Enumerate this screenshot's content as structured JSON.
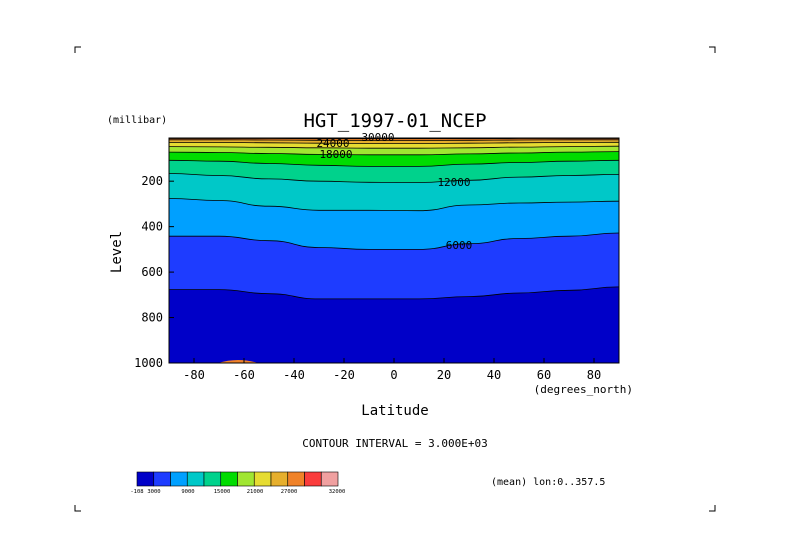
{
  "chart_data": {
    "type": "heatmap",
    "subtype": "filled-contour (latitude-pressure section)",
    "title": "HGT_1997-01_NCEP",
    "xlabel": "Latitude",
    "xunits": "(degrees_north)",
    "ylabel": "Level",
    "yunits": "(millibar)",
    "x_ticks": [
      -80,
      -60,
      -40,
      -20,
      0,
      20,
      40,
      60,
      80
    ],
    "y_ticks": [
      200,
      400,
      600,
      800,
      1000
    ],
    "xlim": [
      -90,
      90
    ],
    "ylim": [
      1000,
      10
    ],
    "contour_interval_text": "CONTOUR INTERVAL = 3.000E+03",
    "contour_interval": 3000,
    "contour_labels": [
      "30000",
      "24000",
      "18000",
      "12000",
      "6000"
    ],
    "mean_text": "(mean) lon:0..357.5",
    "colorbar": {
      "colors": [
        "#0000c8",
        "#1e3cff",
        "#00a0ff",
        "#00c8c8",
        "#00d28c",
        "#00dc00",
        "#a0e632",
        "#e6dc32",
        "#e6af2d",
        "#f08228",
        "#fa3c3c",
        "#f0a0a0"
      ],
      "tick_labels": [
        "-108",
        "3000",
        "9000",
        "15000",
        "21000",
        "27000",
        "32000"
      ]
    },
    "contours": [
      {
        "level": 3000,
        "lat": [
          -90,
          -70,
          -50,
          -30,
          -10,
          10,
          30,
          50,
          70,
          90
        ],
        "p": [
          677,
          677,
          695,
          718,
          718,
          718,
          708,
          692,
          680,
          665
        ]
      },
      {
        "level": 6000,
        "lat": [
          -90,
          -70,
          -50,
          -30,
          -10,
          10,
          30,
          50,
          70,
          90
        ],
        "p": [
          442,
          442,
          462,
          492,
          500,
          500,
          475,
          452,
          442,
          428
        ]
      },
      {
        "level": 9000,
        "lat": [
          -90,
          -70,
          -50,
          -30,
          -10,
          10,
          30,
          50,
          70,
          90
        ],
        "p": [
          276,
          285,
          310,
          328,
          328,
          330,
          305,
          296,
          292,
          288
        ]
      },
      {
        "level": 12000,
        "lat": [
          -90,
          -70,
          -50,
          -30,
          -10,
          10,
          30,
          50,
          70,
          90
        ],
        "p": [
          166,
          175,
          190,
          200,
          205,
          206,
          196,
          182,
          175,
          170
        ]
      },
      {
        "level": 15000,
        "lat": [
          -90,
          -70,
          -50,
          -30,
          -10,
          10,
          30,
          50,
          70,
          90
        ],
        "p": [
          108,
          112,
          122,
          130,
          135,
          135,
          125,
          118,
          112,
          108
        ]
      },
      {
        "level": 18000,
        "lat": [
          -90,
          -70,
          -50,
          -30,
          -10,
          10,
          30,
          50,
          70,
          90
        ],
        "p": [
          72,
          74,
          78,
          82,
          84,
          84,
          80,
          76,
          72,
          70
        ]
      },
      {
        "level": 21000,
        "lat": [
          -90,
          -70,
          -50,
          -30,
          -10,
          10,
          30,
          50,
          70,
          90
        ],
        "p": [
          48,
          49,
          51,
          53,
          55,
          55,
          53,
          50,
          48,
          46
        ]
      },
      {
        "level": 24000,
        "lat": [
          -90,
          -70,
          -50,
          -30,
          -10,
          10,
          30,
          50,
          70,
          90
        ],
        "p": [
          30,
          30,
          31,
          33,
          34,
          34,
          33,
          31,
          30,
          29
        ]
      },
      {
        "level": 27000,
        "lat": [
          -90,
          -70,
          -50,
          -30,
          -10,
          10,
          30,
          50,
          70,
          90
        ],
        "p": [
          18,
          18,
          19,
          20,
          21,
          21,
          20,
          19,
          18,
          18
        ]
      },
      {
        "level": 30000,
        "lat": [
          -90,
          -70,
          -50,
          -30,
          -10,
          10,
          30,
          50,
          70,
          90
        ],
        "p": [
          12,
          12,
          12,
          13,
          13,
          13,
          13,
          12,
          12,
          12
        ]
      }
    ]
  }
}
